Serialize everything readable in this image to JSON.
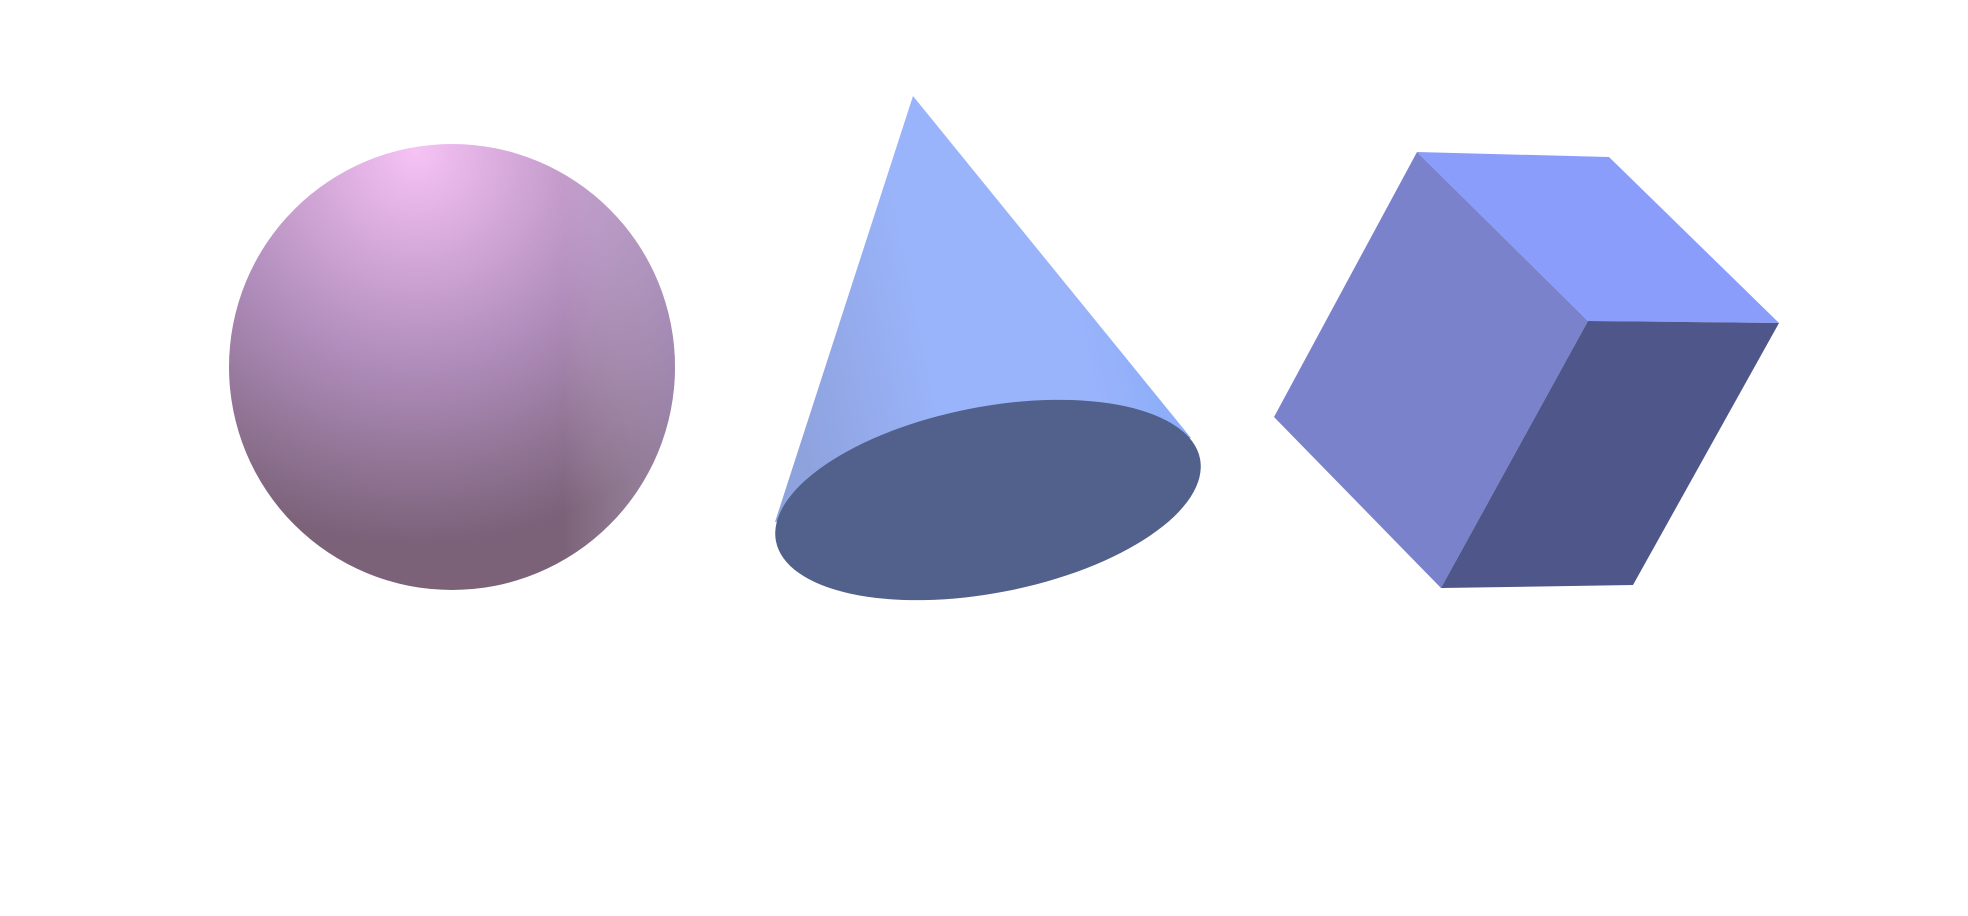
{
  "scene": {
    "background": "#ffffff",
    "shapes": [
      {
        "kind": "sphere",
        "colors": {
          "highlight": "#f6c2f4",
          "mid": "#b18ebd",
          "shadow": "#7b6279",
          "rim": "#c9b6f2"
        }
      },
      {
        "kind": "cone",
        "colors": {
          "side_light": "#9ab4fb",
          "side_edge": "#8ea2dd",
          "side_dark": "#84a9f7",
          "base": "#52608c"
        }
      },
      {
        "kind": "cube",
        "colors": {
          "top": "#8a9dfb",
          "left": "#7a82cc",
          "right": "#4f568a"
        }
      }
    ]
  }
}
